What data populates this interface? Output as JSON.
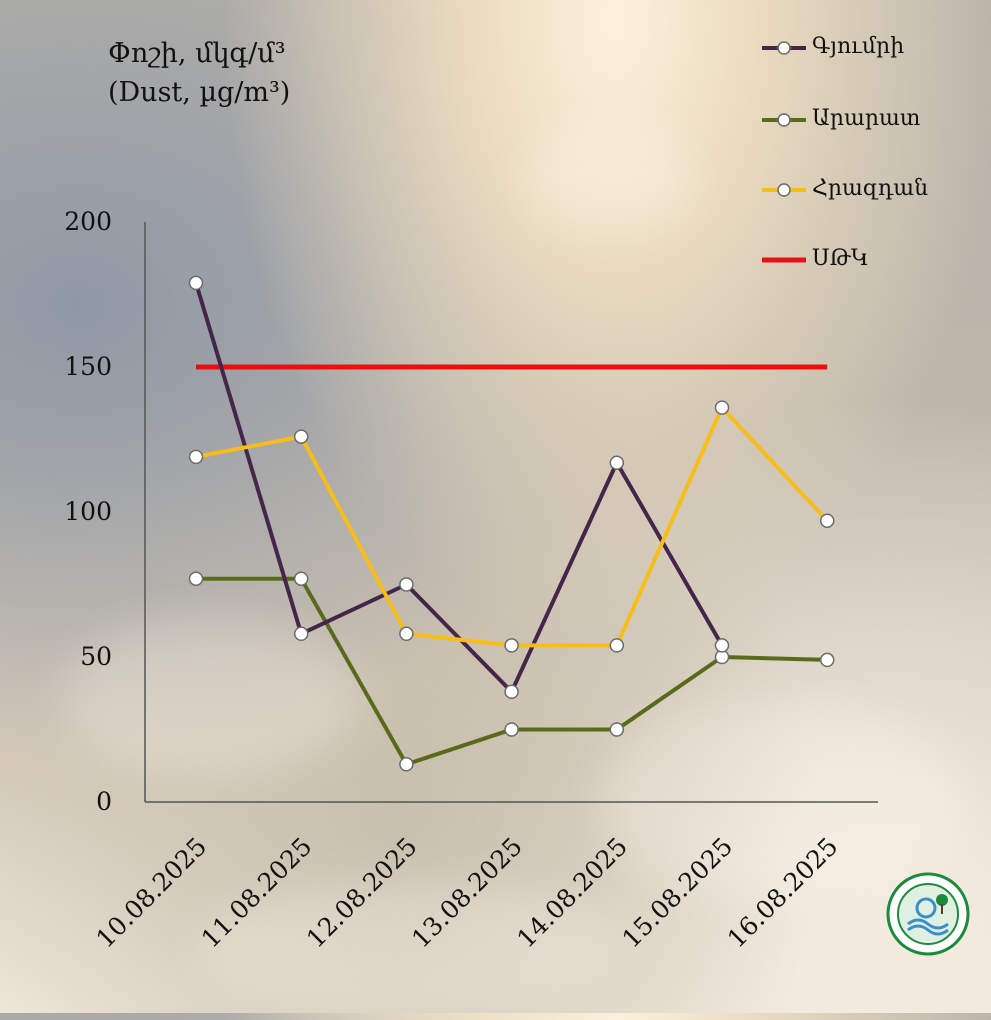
{
  "y_title_line1": "Փոշի, մկգ/մ³",
  "y_title_line2": "(Dust, µg/m³)",
  "chart_data": {
    "type": "line",
    "x": [
      "10.08.2025",
      "11.08.2025",
      "12.08.2025",
      "13.08.2025",
      "14.08.2025",
      "15.08.2025",
      "16.08.2025"
    ],
    "yticks": [
      0,
      50,
      100,
      150,
      200
    ],
    "ylim": [
      0,
      200
    ],
    "grid": false,
    "legend_position": "top-right",
    "series": [
      {
        "name": "Գյումրի",
        "color": "#45264a",
        "values": [
          179,
          58,
          75,
          38,
          117,
          54,
          null
        ]
      },
      {
        "name": "Արարատ",
        "color": "#5a6a1c",
        "values": [
          77,
          77,
          13,
          25,
          25,
          50,
          49
        ]
      },
      {
        "name": "Հրազդան",
        "color": "#f7bd1a",
        "values": [
          119,
          126,
          58,
          54,
          54,
          136,
          97
        ]
      },
      {
        "name": "ՍԹԿ",
        "color": "#e51212",
        "values": [
          150,
          150,
          150,
          150,
          150,
          150,
          150
        ],
        "marker": false
      }
    ]
  },
  "logo": {
    "icon": "ministry-emblem-icon",
    "ring_color": "#1c8a3c",
    "inner_color": "#3a8fc8"
  }
}
